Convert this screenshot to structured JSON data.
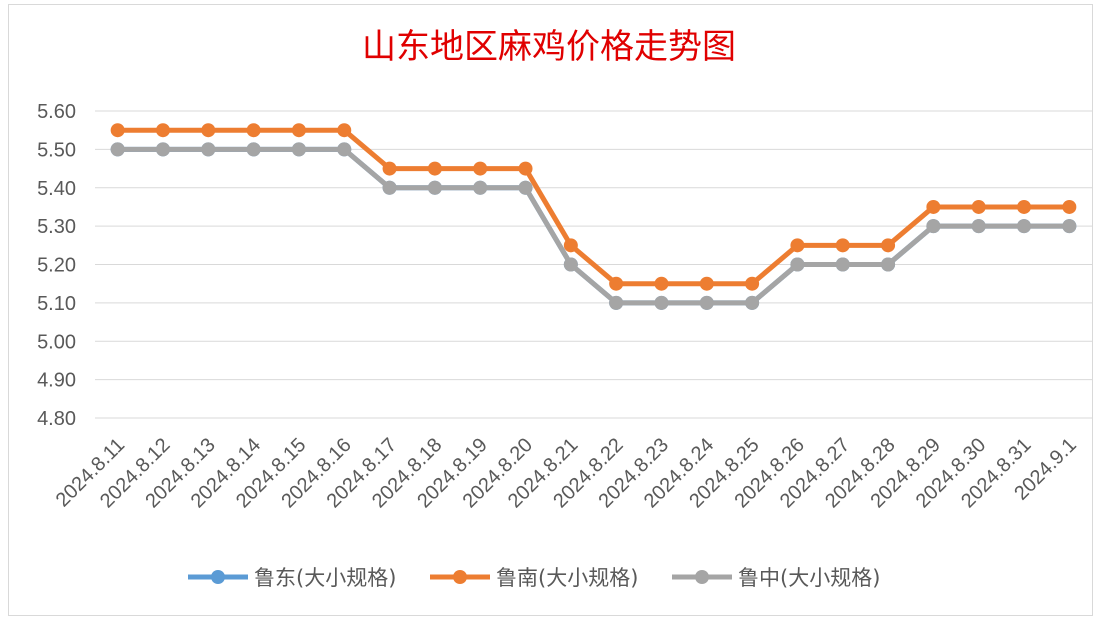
{
  "chart_data": {
    "type": "line",
    "title": "山东地区麻鸡价格走势图",
    "xlabel": "",
    "ylabel": "",
    "ylim": [
      4.8,
      5.6
    ],
    "yticks": [
      "5.60",
      "5.50",
      "5.40",
      "5.30",
      "5.20",
      "5.10",
      "5.00",
      "4.90",
      "4.80"
    ],
    "categories": [
      "2024.8.11",
      "2024.8.12",
      "2024.8.13",
      "2024.8.14",
      "2024.8.15",
      "2024.8.16",
      "2024.8.17",
      "2024.8.18",
      "2024.8.19",
      "2024.8.20",
      "2024.8.21",
      "2024.8.22",
      "2024.8.23",
      "2024.8.24",
      "2024.8.25",
      "2024.8.26",
      "2024.8.27",
      "2024.8.28",
      "2024.8.29",
      "2024.8.30",
      "2024.8.31",
      "2024.9.1"
    ],
    "series": [
      {
        "name": "鲁东(大小规格)",
        "color": "#5b9bd5",
        "values": [
          5.5,
          5.5,
          5.5,
          5.5,
          5.5,
          5.5,
          5.4,
          5.4,
          5.4,
          5.4,
          5.2,
          5.1,
          5.1,
          5.1,
          5.1,
          5.2,
          5.2,
          5.2,
          5.3,
          5.3,
          5.3,
          5.3
        ]
      },
      {
        "name": "鲁南(大小规格)",
        "color": "#ed7d31",
        "values": [
          5.55,
          5.55,
          5.55,
          5.55,
          5.55,
          5.55,
          5.45,
          5.45,
          5.45,
          5.45,
          5.25,
          5.15,
          5.15,
          5.15,
          5.15,
          5.25,
          5.25,
          5.25,
          5.35,
          5.35,
          5.35,
          5.35
        ]
      },
      {
        "name": "鲁中(大小规格)",
        "color": "#a5a5a5",
        "values": [
          5.5,
          5.5,
          5.5,
          5.5,
          5.5,
          5.5,
          5.4,
          5.4,
          5.4,
          5.4,
          5.2,
          5.1,
          5.1,
          5.1,
          5.1,
          5.2,
          5.2,
          5.2,
          5.3,
          5.3,
          5.3,
          5.3
        ]
      }
    ],
    "grid": true,
    "legend": "bottom"
  }
}
